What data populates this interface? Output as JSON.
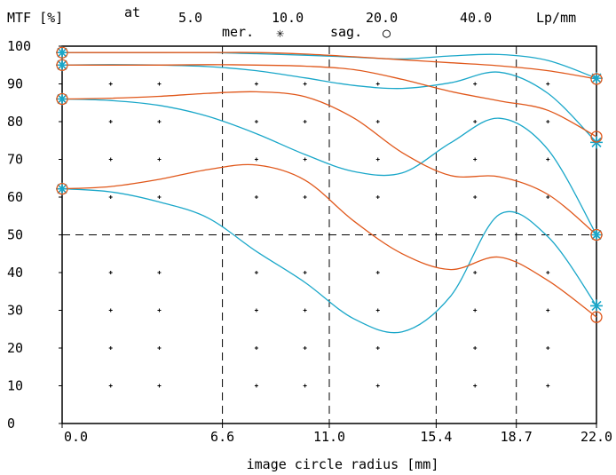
{
  "chart_data": {
    "type": "line",
    "header": {
      "mtf_label": "MTF [%]",
      "at_label": "at",
      "freq_labels": [
        "5.0",
        "10.0",
        "20.0",
        "40.0"
      ],
      "unit_label": "Lp/mm",
      "mer_label": "mer.",
      "mer_symbol": "✳",
      "sag_label": "sag.",
      "sag_symbol": "○"
    },
    "xlabel": "image circle radius [mm]",
    "xlim": [
      0,
      22.0
    ],
    "ylim": [
      0,
      100
    ],
    "x_ticks": [
      {
        "value": 0.0,
        "label": "0.0"
      },
      {
        "value": 6.6,
        "label": "6.6"
      },
      {
        "value": 11.0,
        "label": "11.0"
      },
      {
        "value": 15.4,
        "label": "15.4"
      },
      {
        "value": 18.7,
        "label": "18.7"
      },
      {
        "value": 22.0,
        "label": "22.0"
      }
    ],
    "y_ticks": [
      0,
      10,
      20,
      30,
      40,
      50,
      60,
      70,
      80,
      90,
      100
    ],
    "colors": {
      "meridional": "#1aa7c9",
      "sagittal": "#e0571a",
      "frame": "#000000"
    },
    "series": [
      {
        "kind": "mer",
        "frequency": "5.0",
        "color": "#1aa7c9",
        "x": [
          0,
          2,
          4,
          6,
          8,
          10,
          12,
          14,
          16,
          18,
          20,
          22
        ],
        "y": [
          98.3,
          98.3,
          98.3,
          98.3,
          98.0,
          97.6,
          97.1,
          96.6,
          97.4,
          97.8,
          96.2,
          91.5
        ]
      },
      {
        "kind": "sag",
        "frequency": "5.0",
        "color": "#e0571a",
        "x": [
          0,
          2,
          4,
          6,
          8,
          10,
          12,
          14,
          16,
          18,
          20,
          22
        ],
        "y": [
          98.3,
          98.3,
          98.3,
          98.3,
          98.3,
          97.9,
          97.2,
          96.4,
          95.6,
          94.8,
          93.5,
          91.3
        ]
      },
      {
        "kind": "mer",
        "frequency": "10.0",
        "color": "#1aa7c9",
        "x": [
          0,
          2,
          4,
          6,
          8,
          10,
          12,
          14,
          16,
          18,
          20,
          22
        ],
        "y": [
          95.0,
          95.1,
          95.0,
          94.6,
          93.5,
          91.6,
          89.6,
          88.8,
          90.3,
          93.1,
          87.5,
          74.5
        ]
      },
      {
        "kind": "sag",
        "frequency": "10.0",
        "color": "#e0571a",
        "x": [
          0,
          2,
          4,
          6,
          8,
          10,
          12,
          14,
          16,
          18,
          20,
          22
        ],
        "y": [
          95.0,
          95.0,
          95.0,
          95.1,
          95.0,
          94.7,
          93.8,
          91.2,
          88.0,
          85.5,
          83.0,
          76.0
        ]
      },
      {
        "kind": "mer",
        "frequency": "20.0",
        "color": "#1aa7c9",
        "x": [
          0,
          2,
          4,
          6,
          8,
          10,
          12,
          14,
          16,
          18,
          20,
          22
        ],
        "y": [
          86.0,
          85.6,
          84.3,
          81.4,
          76.8,
          71.3,
          66.8,
          66.4,
          74.4,
          80.9,
          72.6,
          50.0
        ]
      },
      {
        "kind": "sag",
        "frequency": "20.0",
        "color": "#e0571a",
        "x": [
          0,
          2,
          4,
          6,
          8,
          10,
          12,
          14,
          16,
          18,
          20,
          22
        ],
        "y": [
          86.0,
          86.2,
          86.7,
          87.5,
          87.9,
          86.6,
          81.0,
          71.8,
          65.7,
          65.4,
          60.7,
          50.0
        ]
      },
      {
        "kind": "mer",
        "frequency": "40.0",
        "color": "#1aa7c9",
        "x": [
          0,
          2,
          4,
          6,
          8,
          10,
          12,
          14,
          16,
          18,
          20,
          22
        ],
        "y": [
          62.2,
          61.4,
          58.7,
          54.5,
          45.6,
          37.4,
          27.8,
          24.3,
          33.8,
          55.4,
          49.5,
          31.2
        ]
      },
      {
        "kind": "sag",
        "frequency": "40.0",
        "color": "#e0571a",
        "x": [
          0,
          2,
          4,
          6,
          8,
          10,
          12,
          14,
          16,
          18,
          20,
          22
        ],
        "y": [
          62.2,
          62.8,
          64.7,
          67.3,
          68.5,
          64.5,
          53.7,
          45.0,
          40.8,
          44.1,
          37.9,
          28.2
        ]
      }
    ],
    "grid": "dashed lines at 50% and at 6.6, 11.0, 15.4, 18.7 mm; dot grid elsewhere",
    "legend": "top"
  }
}
